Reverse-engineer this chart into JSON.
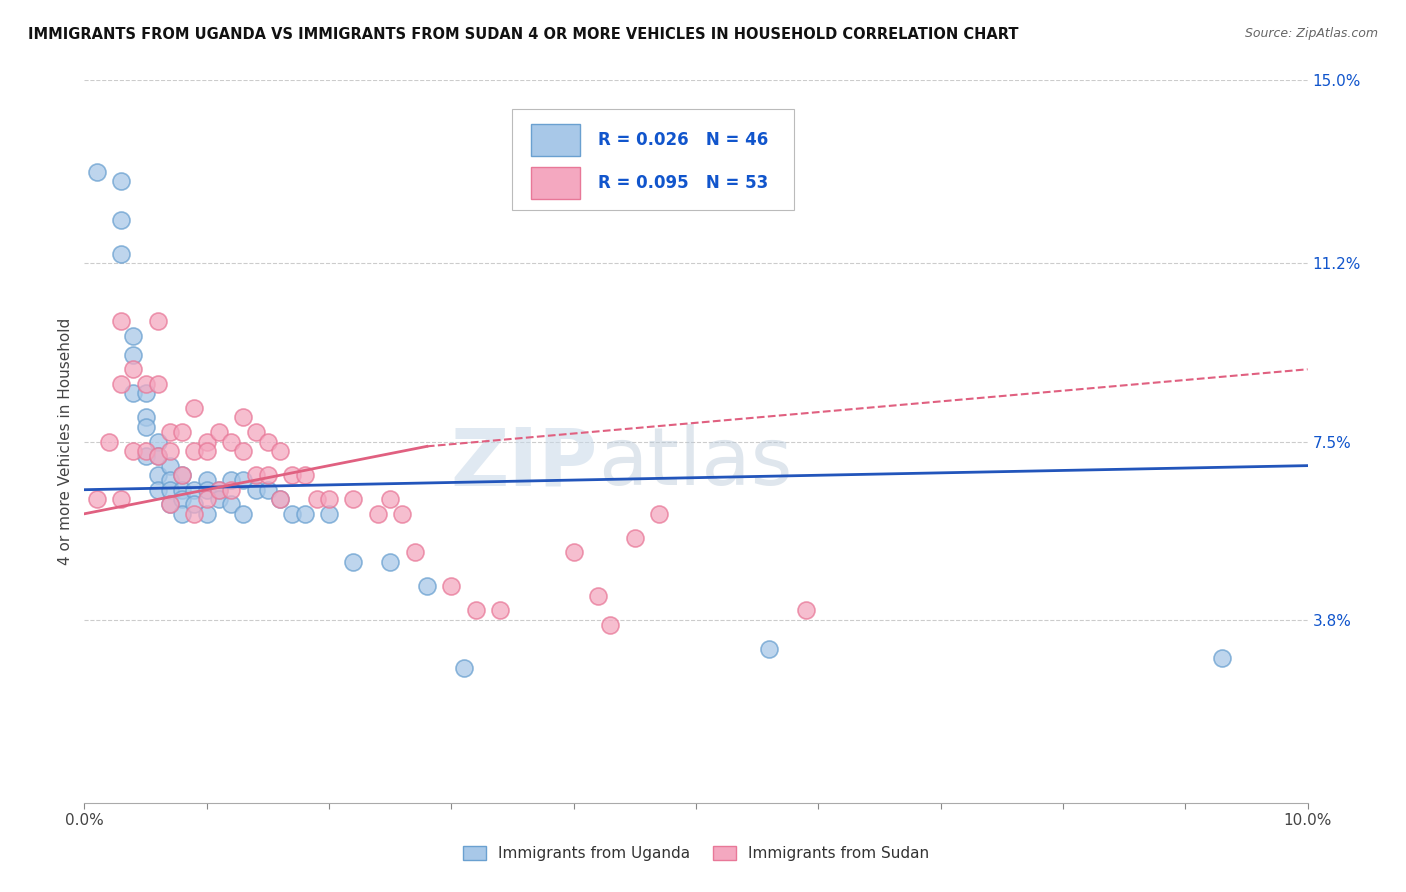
{
  "title": "IMMIGRANTS FROM UGANDA VS IMMIGRANTS FROM SUDAN 4 OR MORE VEHICLES IN HOUSEHOLD CORRELATION CHART",
  "source": "Source: ZipAtlas.com",
  "ylabel": "4 or more Vehicles in Household",
  "xlim": [
    0.0,
    0.1
  ],
  "ylim": [
    0.0,
    0.15
  ],
  "yticks_right": [
    0.038,
    0.075,
    0.112,
    0.15
  ],
  "yticklabels_right": [
    "3.8%",
    "7.5%",
    "11.2%",
    "15.0%"
  ],
  "uganda_color": "#a8c8e8",
  "sudan_color": "#f4a8c0",
  "uganda_edge": "#6aa0d0",
  "sudan_edge": "#e87898",
  "uganda_R": 0.026,
  "uganda_N": 46,
  "sudan_R": 0.095,
  "sudan_N": 53,
  "uganda_line_color": "#2255bb",
  "sudan_line_color": "#e06080",
  "watermark_zip": "ZIP",
  "watermark_atlas": "atlas",
  "legend_R_color": "#1155cc",
  "uganda_x": [
    0.001,
    0.003,
    0.003,
    0.003,
    0.004,
    0.004,
    0.004,
    0.005,
    0.005,
    0.005,
    0.005,
    0.006,
    0.006,
    0.006,
    0.006,
    0.007,
    0.007,
    0.007,
    0.007,
    0.008,
    0.008,
    0.008,
    0.008,
    0.009,
    0.009,
    0.01,
    0.01,
    0.01,
    0.011,
    0.011,
    0.012,
    0.012,
    0.013,
    0.013,
    0.014,
    0.015,
    0.016,
    0.017,
    0.018,
    0.02,
    0.022,
    0.025,
    0.028,
    0.031,
    0.056,
    0.093
  ],
  "uganda_y": [
    0.131,
    0.129,
    0.121,
    0.114,
    0.097,
    0.093,
    0.085,
    0.085,
    0.08,
    0.078,
    0.072,
    0.075,
    0.072,
    0.068,
    0.065,
    0.07,
    0.067,
    0.065,
    0.062,
    0.068,
    0.065,
    0.063,
    0.06,
    0.065,
    0.062,
    0.067,
    0.065,
    0.06,
    0.065,
    0.063,
    0.067,
    0.062,
    0.067,
    0.06,
    0.065,
    0.065,
    0.063,
    0.06,
    0.06,
    0.06,
    0.05,
    0.05,
    0.045,
    0.028,
    0.032,
    0.03
  ],
  "sudan_x": [
    0.001,
    0.002,
    0.003,
    0.003,
    0.003,
    0.004,
    0.004,
    0.005,
    0.005,
    0.006,
    0.006,
    0.006,
    0.007,
    0.007,
    0.007,
    0.008,
    0.008,
    0.009,
    0.009,
    0.009,
    0.01,
    0.01,
    0.01,
    0.011,
    0.011,
    0.012,
    0.012,
    0.013,
    0.013,
    0.014,
    0.014,
    0.015,
    0.015,
    0.016,
    0.016,
    0.017,
    0.018,
    0.019,
    0.02,
    0.022,
    0.024,
    0.025,
    0.026,
    0.027,
    0.03,
    0.032,
    0.034,
    0.04,
    0.042,
    0.043,
    0.045,
    0.047,
    0.059
  ],
  "sudan_y": [
    0.063,
    0.075,
    0.1,
    0.087,
    0.063,
    0.09,
    0.073,
    0.087,
    0.073,
    0.1,
    0.087,
    0.072,
    0.077,
    0.073,
    0.062,
    0.077,
    0.068,
    0.082,
    0.073,
    0.06,
    0.075,
    0.073,
    0.063,
    0.077,
    0.065,
    0.075,
    0.065,
    0.08,
    0.073,
    0.077,
    0.068,
    0.075,
    0.068,
    0.073,
    0.063,
    0.068,
    0.068,
    0.063,
    0.063,
    0.063,
    0.06,
    0.063,
    0.06,
    0.052,
    0.045,
    0.04,
    0.04,
    0.052,
    0.043,
    0.037,
    0.055,
    0.06,
    0.04
  ]
}
